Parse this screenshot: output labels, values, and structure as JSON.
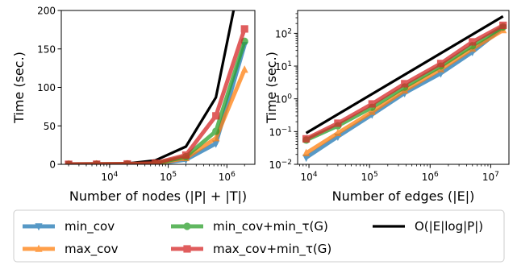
{
  "chart_data": [
    {
      "type": "line",
      "xscale": "log",
      "yscale": "linear",
      "xlabel": "Number of nodes (|P| + |T|)",
      "ylabel": "Time (sec.)",
      "xlim": [
        1500,
        3000000
      ],
      "ylim": [
        0,
        200
      ],
      "xticks": [
        {
          "value": 10000,
          "base": "10",
          "exp": "4"
        },
        {
          "value": 100000,
          "base": "10",
          "exp": "5"
        },
        {
          "value": 1000000,
          "base": "10",
          "exp": "6"
        }
      ],
      "yticks": [
        {
          "value": 0,
          "label": "0"
        },
        {
          "value": 50,
          "label": "50"
        },
        {
          "value": 100,
          "label": "100"
        },
        {
          "value": 150,
          "label": "150"
        },
        {
          "value": 200,
          "label": "200"
        }
      ],
      "series": [
        {
          "key": "min_cov",
          "x": [
            2000,
            6000,
            20000,
            60000,
            200000,
            650000,
            2000000
          ],
          "y": [
            0.02,
            0.06,
            0.2,
            0.6,
            6,
            27,
            155
          ]
        },
        {
          "key": "max_cov",
          "x": [
            2000,
            6000,
            20000,
            60000,
            200000,
            650000,
            2000000
          ],
          "y": [
            0.03,
            0.08,
            0.25,
            0.8,
            8,
            34,
            123
          ]
        },
        {
          "key": "min_cov_tau",
          "x": [
            2000,
            6000,
            20000,
            60000,
            200000,
            650000,
            2000000
          ],
          "y": [
            0.05,
            0.15,
            0.4,
            1.2,
            10,
            43,
            160
          ]
        },
        {
          "key": "max_cov_tau",
          "x": [
            2000,
            6000,
            20000,
            60000,
            200000,
            650000,
            2000000
          ],
          "y": [
            0.06,
            0.18,
            0.5,
            1.5,
            12,
            63,
            176
          ]
        },
        {
          "key": "bound",
          "x": [
            2000,
            6000,
            20000,
            60000,
            200000,
            650000,
            1300000
          ],
          "y": [
            0.1,
            0.3,
            1,
            5,
            23,
            87,
            200
          ]
        }
      ]
    },
    {
      "type": "line",
      "xscale": "log",
      "yscale": "log",
      "xlabel": "Number of edges (|E|)",
      "ylabel": "Time (sec.)",
      "xlim": [
        6500,
        20000000
      ],
      "ylim": [
        0.01,
        500
      ],
      "xticks": [
        {
          "value": 10000,
          "base": "10",
          "exp": "4"
        },
        {
          "value": 100000,
          "base": "10",
          "exp": "5"
        },
        {
          "value": 1000000,
          "base": "10",
          "exp": "6"
        },
        {
          "value": 10000000,
          "base": "10",
          "exp": "7"
        }
      ],
      "yticks": [
        {
          "value": 0.01,
          "base": "10",
          "exp": "−2"
        },
        {
          "value": 0.1,
          "base": "10",
          "exp": "−1"
        },
        {
          "value": 1,
          "base": "10",
          "exp": "0"
        },
        {
          "value": 10,
          "base": "10",
          "exp": "1"
        },
        {
          "value": 100,
          "base": "10",
          "exp": "2"
        }
      ],
      "series": [
        {
          "key": "min_cov",
          "x": [
            9000,
            30000,
            110000,
            380000,
            1500000,
            5000000,
            16000000
          ],
          "y": [
            0.016,
            0.07,
            0.33,
            1.5,
            6,
            27,
            150
          ]
        },
        {
          "key": "max_cov",
          "x": [
            9000,
            30000,
            110000,
            380000,
            1500000,
            5000000,
            16000000
          ],
          "y": [
            0.022,
            0.09,
            0.4,
            1.8,
            8,
            34,
            125
          ]
        },
        {
          "key": "min_cov_tau",
          "x": [
            9000,
            30000,
            110000,
            380000,
            1500000,
            5000000,
            16000000
          ],
          "y": [
            0.055,
            0.15,
            0.55,
            2.3,
            10,
            42,
            158
          ]
        },
        {
          "key": "max_cov_tau",
          "x": [
            9000,
            30000,
            110000,
            380000,
            1500000,
            5000000,
            16000000
          ],
          "y": [
            0.06,
            0.18,
            0.7,
            2.9,
            12,
            55,
            176
          ]
        },
        {
          "key": "bound",
          "x": [
            9000,
            16000000
          ],
          "y": [
            0.09,
            330
          ]
        }
      ]
    }
  ],
  "legend": {
    "placement": "bottom",
    "entries": [
      {
        "key": "min_cov",
        "label": "min_cov",
        "color": "#1f77b4",
        "marker": "triangle-down"
      },
      {
        "key": "max_cov",
        "label": "max_cov",
        "color": "#ff7f0e",
        "marker": "triangle-up"
      },
      {
        "key": "min_cov_tau",
        "label": "min_cov+min_τ(G)",
        "color": "#2ca02c",
        "marker": "circle"
      },
      {
        "key": "max_cov_tau",
        "label": "max_cov+min_τ(G)",
        "color": "#d62728",
        "marker": "square"
      },
      {
        "key": "bound",
        "label": "O(|E|log|P|)",
        "color": "#000000",
        "marker": "none"
      }
    ]
  }
}
